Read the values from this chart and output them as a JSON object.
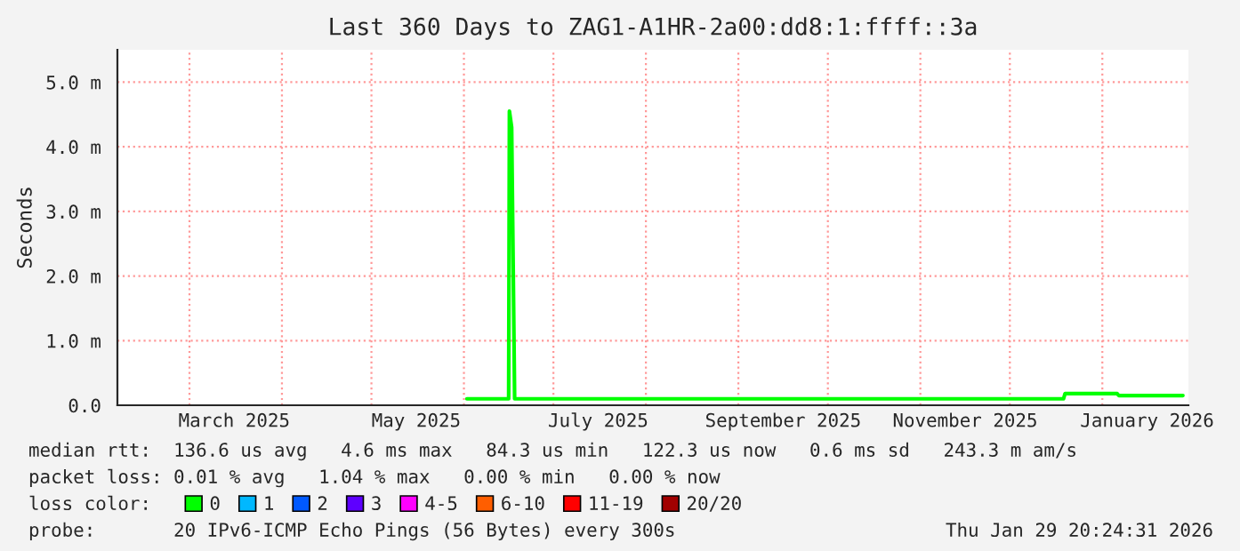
{
  "chart_data": {
    "type": "line",
    "title": "Last 360 Days to ZAG1-A1HR-2a00:dd8:1:ffff::3a",
    "ylabel": "Seconds",
    "x": [
      "2025-06-02",
      "2025-06-16",
      "2025-06-16T06:00",
      "2025-06-17",
      "2025-06-18",
      "2025-12-19",
      "2025-12-19T12:00",
      "2026-01-06",
      "2026-01-06T12:00",
      "2026-01-28"
    ],
    "series": [
      {
        "color": "#00ff00",
        "values": [
          0.1,
          0.1,
          4.55,
          4.3,
          0.1,
          0.1,
          0.18,
          0.18,
          0.15,
          0.15
        ]
      },
      {
        "name": "0",
        "color": "#00ff00",
        "values": [
          null,
          null,
          null,
          null,
          null,
          null,
          null,
          null,
          null,
          null
        ]
      },
      {
        "name": "1",
        "color": "#00b8ff",
        "values": [
          null,
          null,
          null,
          null,
          null,
          null,
          null,
          null,
          null,
          null
        ]
      },
      {
        "name": "2",
        "color": "#0059ff",
        "values": [
          null,
          null,
          null,
          null,
          null,
          null,
          null,
          null,
          null,
          null
        ]
      },
      {
        "name": "3",
        "color": "#5e00ff",
        "values": [
          null,
          null,
          null,
          null,
          null,
          null,
          null,
          null,
          null,
          null
        ]
      },
      {
        "name": "4-5",
        "color": "#ff00ff",
        "values": [
          null,
          null,
          null,
          null,
          null,
          null,
          null,
          null,
          null,
          null
        ]
      },
      {
        "name": "6-10",
        "color": "#ff5e00",
        "values": [
          null,
          null,
          null,
          null,
          null,
          null,
          null,
          null,
          null,
          null
        ]
      },
      {
        "name": "11-19",
        "color": "#ff0000",
        "values": [
          null,
          null,
          null,
          null,
          null,
          null,
          null,
          null,
          null,
          null
        ]
      },
      {
        "name": "20/20",
        "color": "#a10000",
        "values": [
          null,
          null,
          null,
          null,
          null,
          null,
          null,
          null,
          null,
          null
        ]
      }
    ],
    "xlim": [
      "2025-02-04T20:24",
      "2026-01-29T20:24"
    ],
    "xticks": [
      {
        "value": "2025-03-01",
        "label": null
      },
      {
        "value": "2025-03-16",
        "label": "March 2025"
      },
      {
        "value": "2025-04-01",
        "label": null
      },
      {
        "value": "2025-05-01",
        "label": null
      },
      {
        "value": "2025-05-16",
        "label": "May 2025"
      },
      {
        "value": "2025-06-01",
        "label": null
      },
      {
        "value": "2025-07-01",
        "label": null
      },
      {
        "value": "2025-07-16",
        "label": "July 2025"
      },
      {
        "value": "2025-08-01",
        "label": null
      },
      {
        "value": "2025-09-01",
        "label": null
      },
      {
        "value": "2025-09-16",
        "label": "September 2025"
      },
      {
        "value": "2025-10-01",
        "label": null
      },
      {
        "value": "2025-11-01",
        "label": null
      },
      {
        "value": "2025-11-16",
        "label": "November 2025"
      },
      {
        "value": "2025-12-01",
        "label": null
      },
      {
        "value": "2026-01-01",
        "label": null
      },
      {
        "value": "2026-01-16",
        "label": "January 2026"
      }
    ],
    "ylim": [
      0,
      5.5
    ],
    "yticks": [
      {
        "value": 0,
        "label": "0.0"
      },
      {
        "value": 1,
        "label": "1.0 m"
      },
      {
        "value": 2,
        "label": "2.0 m"
      },
      {
        "value": 3,
        "label": "3.0 m"
      },
      {
        "value": 4,
        "label": "4.0 m"
      },
      {
        "value": 5,
        "label": "5.0 m"
      }
    ],
    "grid": true,
    "legend": "bottom",
    "marker": "none",
    "line_style": "solid",
    "annotations": [
      "median rtt:  136.6 us avg   4.6 ms max   84.3 us min   122.3 us now   0.6 ms sd   243.3 m am/s",
      "packet loss: 0.01 % avg   1.04 % max   0.00 % min   0.00 % now",
      "loss color:",
      "probe:       20 IPv6-ICMP Echo Pings (56 Bytes) every 300s",
      "Thu Jan 29 20:24:31 2026"
    ]
  }
}
